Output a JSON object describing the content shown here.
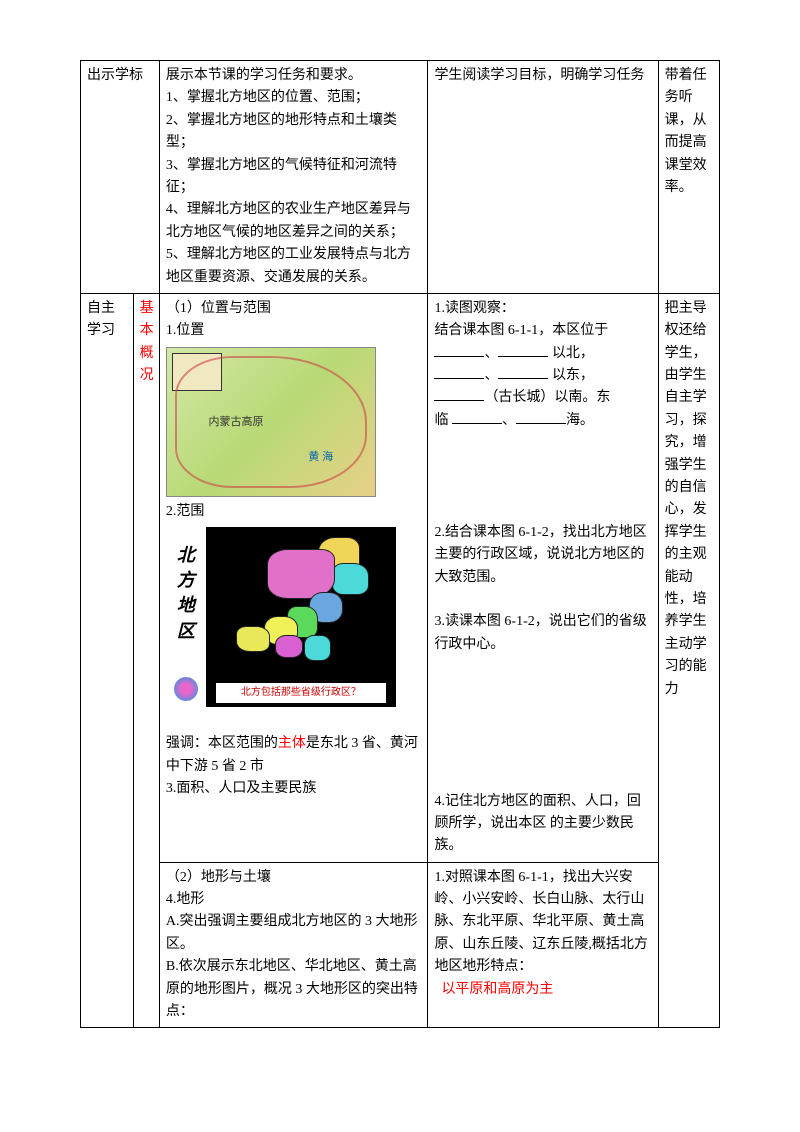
{
  "row1": {
    "label": "出示学标",
    "content_lines": [
      "展示本节课的学习任务和要求。",
      "1、掌握北方地区的位置、范围；",
      "2、掌握北方地区的地形特点和土壤类型；",
      "",
      "3、掌握北方地区的气候特征和河流特征；",
      "",
      "",
      "4、理解北方地区的农业生产地区差异与北方地区气候的地区差异之间的关系；",
      "5、理解北方地区的工业发展特点与北方地区重要资源、交通发展的关系。"
    ],
    "activity": "学生阅读学习目标，明确学习任务",
    "purpose": "带着任务听课，从而提高课堂效率。"
  },
  "row2": {
    "label": "自主学习",
    "sublabel": "基本概况",
    "section1_title": "（1）位置与范围",
    "pos_title": "1.位置",
    "map1_labels": {
      "a": "内蒙古高原",
      "b": "黄 海"
    },
    "range_title": "2.范围",
    "map2_side": [
      "北",
      "方",
      "地",
      "区"
    ],
    "map2_caption": "北方包括那些省级行政区？",
    "emphasis_pre": "强调：本区范围的",
    "emphasis_red": "主体",
    "emphasis_post": "是东北 3 省、黄河中下游 5 省 2 市",
    "area_title": "3.面积、人口及主要民族",
    "activity1_title": "1.读图观察：",
    "activity1_l1": "结合课本图 6-1-1，本区位于",
    "activity1_l2a": "、",
    "activity1_l2b": " 以北，",
    "activity1_l3a": "、",
    "activity1_l3b": "  以东，",
    "activity1_l4": "（古长城）以南。东",
    "activity1_l5a": "临 ",
    "activity1_l5b": "、",
    "activity1_l5c": "海。",
    "activity2": "2.结合课本图 6-1-2，找出北方地区主要的行政区域，说说北方地区的大致范围。",
    "activity3": "3.读课本图 6-1-2，说出它们的省级行政中心。",
    "activity4": "4.记住北方地区的面积、人口，回顾所学，说出本区 的主要少数民族。",
    "purpose": "把主导权还给学生，由学生自主学习，探究，增强学生的自信心，发挥学生的主观能动性，培养学生主动学习的能力"
  },
  "row3": {
    "section_title": "（2）地形与土壤",
    "terrain_title": "4.地形",
    "a_line": "A.突出强调主要组成北方地区的 3 大地形区。",
    "b_line": "B.依次展示东北地区、华北地区、黄土高原的地形图片，概况 3 大地形区的突出特点：",
    "activity_l1": "1.对照课本图 6-1-1，找出大兴安岭、小兴安岭、长白山脉、太行山脉、东北平原、华北平原、黄土高原、山东丘陵、辽东丘陵,概括北方地区地形特点：",
    "activity_red": "以平原和高原为主"
  }
}
